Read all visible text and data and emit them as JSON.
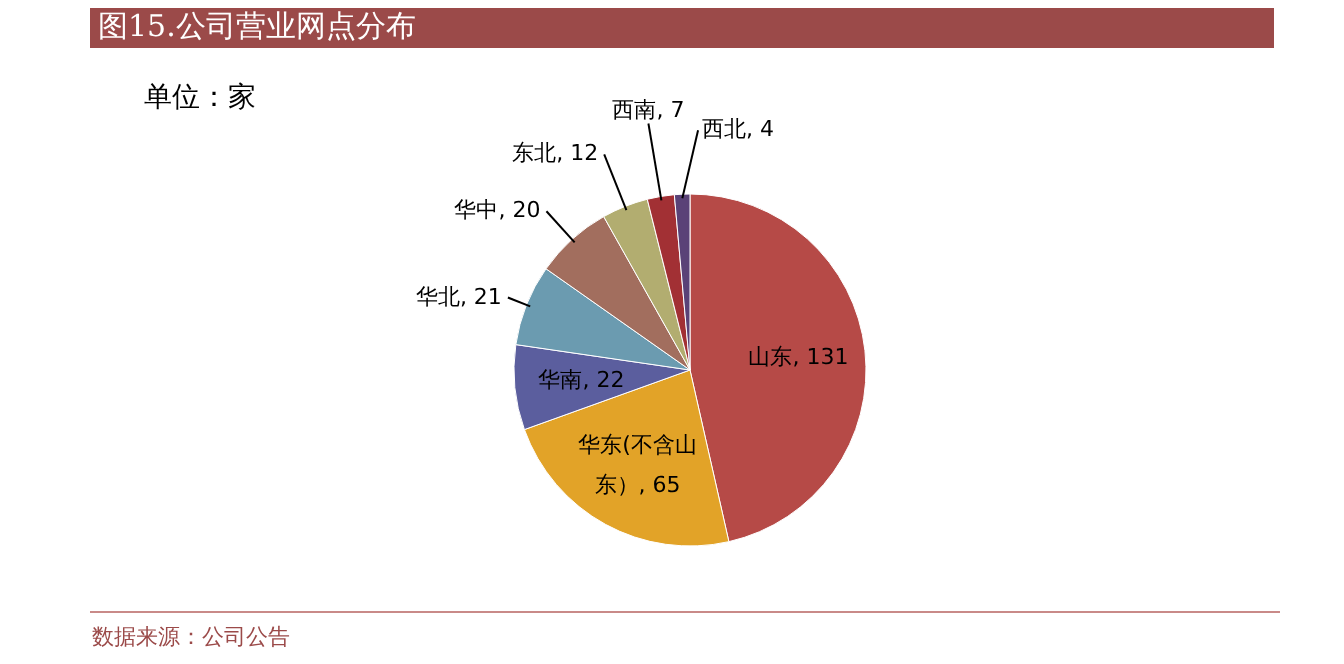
{
  "chart_data": {
    "type": "pie",
    "title": "图15.公司营业网点分布",
    "subtitle": "单位：家",
    "categories": [
      "山东",
      "华东(不含山东）",
      "华南",
      "华北",
      "华中",
      "东北",
      "西南",
      "西北"
    ],
    "values": [
      131,
      65,
      22,
      21,
      20,
      12,
      7,
      4
    ],
    "colors": [
      "#b64a47",
      "#e2a328",
      "#5b5e9e",
      "#6b9bb0",
      "#a26e5e",
      "#b2ad70",
      "#a23034",
      "#5a4277"
    ],
    "value_labels": [
      ", 131",
      ", 65",
      ", 22",
      ", 21",
      ", 20",
      ", 12",
      ", 7",
      ", 4"
    ],
    "annotations": [
      "数据来源：公司公告"
    ]
  }
}
